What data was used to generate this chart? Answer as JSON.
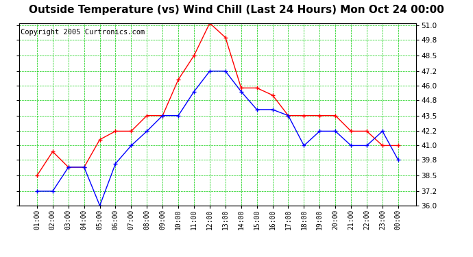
{
  "title": "Outside Temperature (vs) Wind Chill (Last 24 Hours) Mon Oct 24 00:00",
  "copyright": "Copyright 2005 Curtronics.com",
  "x_labels": [
    "01:00",
    "02:00",
    "03:00",
    "04:00",
    "05:00",
    "06:00",
    "07:00",
    "08:00",
    "09:00",
    "10:00",
    "11:00",
    "12:00",
    "13:00",
    "14:00",
    "15:00",
    "16:00",
    "17:00",
    "18:00",
    "19:00",
    "20:00",
    "21:00",
    "22:00",
    "23:00",
    "00:00"
  ],
  "red_data": [
    38.5,
    40.5,
    39.2,
    39.2,
    41.5,
    42.2,
    42.2,
    43.5,
    43.5,
    46.5,
    48.5,
    51.2,
    50.0,
    45.8,
    45.8,
    45.2,
    43.5,
    43.5,
    43.5,
    43.5,
    42.2,
    42.2,
    41.0,
    41.0
  ],
  "blue_data": [
    37.2,
    37.2,
    39.2,
    39.2,
    36.0,
    39.5,
    41.0,
    42.2,
    43.5,
    43.5,
    45.5,
    47.2,
    47.2,
    45.5,
    44.0,
    44.0,
    43.5,
    41.0,
    42.2,
    42.2,
    41.0,
    41.0,
    42.2,
    39.8
  ],
  "ylim": [
    36.0,
    51.2
  ],
  "yticks": [
    36.0,
    37.2,
    38.5,
    39.8,
    41.0,
    42.2,
    43.5,
    44.8,
    46.0,
    47.2,
    48.5,
    49.8,
    51.0
  ],
  "red_color": "#ff0000",
  "blue_color": "#0000ff",
  "grid_color": "#00cc00",
  "bg_color": "#ffffff",
  "title_fontsize": 11,
  "copyright_fontsize": 7.5
}
